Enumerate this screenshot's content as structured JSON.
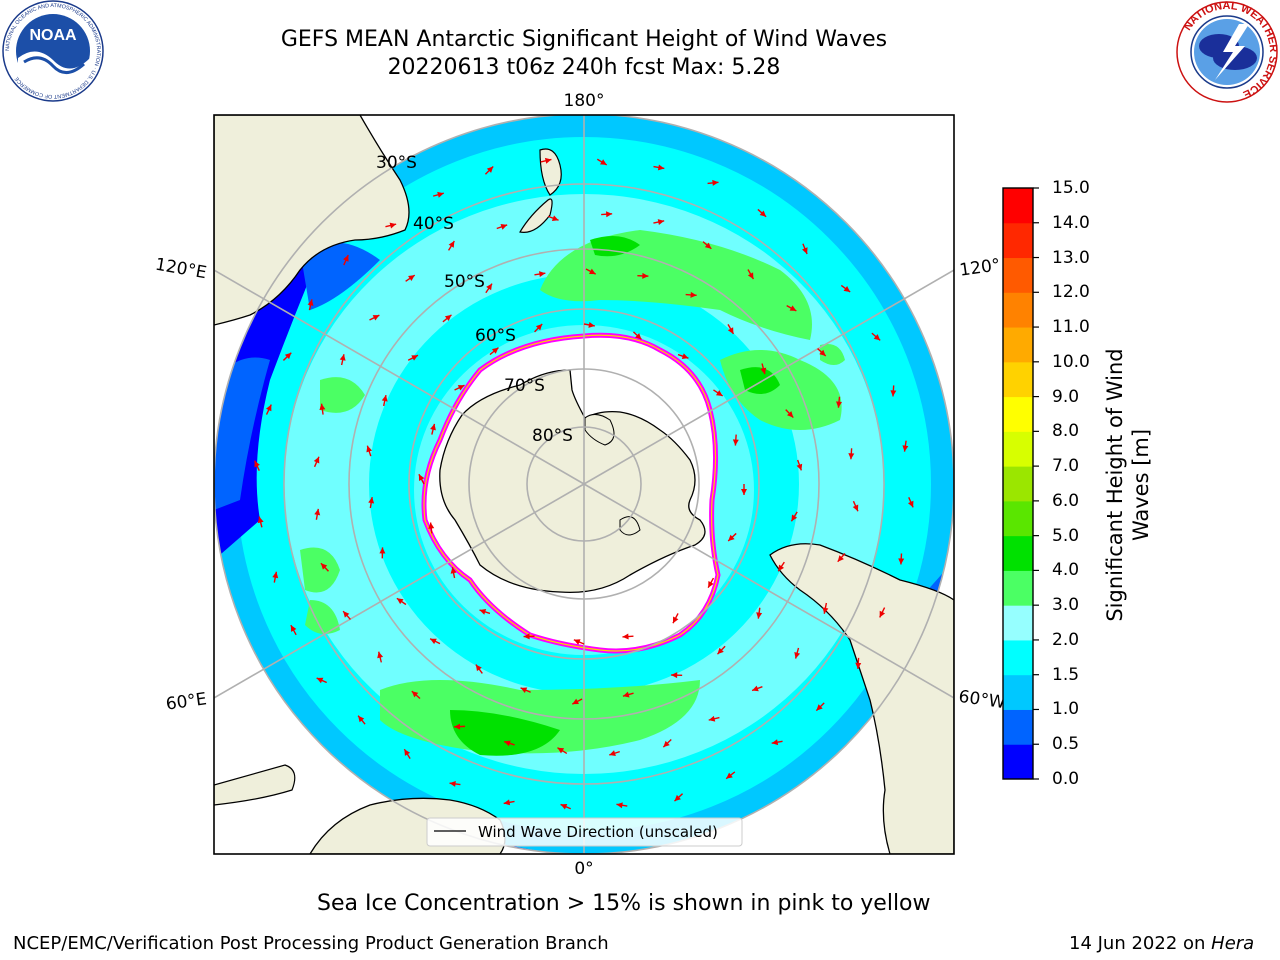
{
  "header": {
    "title_line1": "GEFS MEAN Antarctic Significant Height of Wind Waves",
    "title_line2": "20220613 t06z 240h fcst   Max: 5.28"
  },
  "logos": {
    "left": {
      "name": "noaa-logo",
      "text": "NOAA",
      "ring_text": "NATIONAL OCEANIC AND ATMOSPHERIC ADMINISTRATION · U.S. DEPARTMENT OF COMMERCE"
    },
    "right": {
      "name": "nws-logo",
      "ring_text": "NATIONAL WEATHER SERVICE"
    }
  },
  "map": {
    "projection": "south-polar-stereographic",
    "lat_labels": [
      "30°S",
      "40°S",
      "50°S",
      "60°S",
      "70°S",
      "80°S"
    ],
    "lon_labels": {
      "top": "180°",
      "bottom": "0°",
      "left_upper": "120°E",
      "left_lower": "60°E",
      "right_upper": "120°",
      "right_lower": "60°W"
    },
    "legend_label": "Wind Wave Direction (unscaled)"
  },
  "colorbar": {
    "label_line1": "Significant Height of Wind",
    "label_line2": "Waves [m]",
    "ticks": [
      "0.0",
      "0.5",
      "1.0",
      "1.5",
      "2.0",
      "3.0",
      "4.0",
      "5.0",
      "6.0",
      "7.0",
      "8.0",
      "9.0",
      "10.0",
      "11.0",
      "12.0",
      "13.0",
      "14.0",
      "15.0"
    ],
    "colors": [
      "#0000ff",
      "#0064ff",
      "#00c8ff",
      "#00ffff",
      "#96ffff",
      "#4bff64",
      "#00e100",
      "#5ae600",
      "#9be600",
      "#d7ff00",
      "#ffff00",
      "#ffd200",
      "#ffaa00",
      "#ff8200",
      "#ff5a00",
      "#ff2800",
      "#ff0000"
    ]
  },
  "map_colors": {
    "land": "#efefdb",
    "sea_ice": "#ffffff",
    "ice_edge": [
      "#ff00ff",
      "#ffd200"
    ],
    "arrow": "#ee0000",
    "grid": "#b0b0b0"
  },
  "caption": "Sea Ice Concentration > 15% is shown in pink to yellow",
  "footer": {
    "left": "NCEP/EMC/Verification Post Processing Product Generation Branch",
    "right_date": "14 Jun 2022 on",
    "right_host": "Hera"
  }
}
